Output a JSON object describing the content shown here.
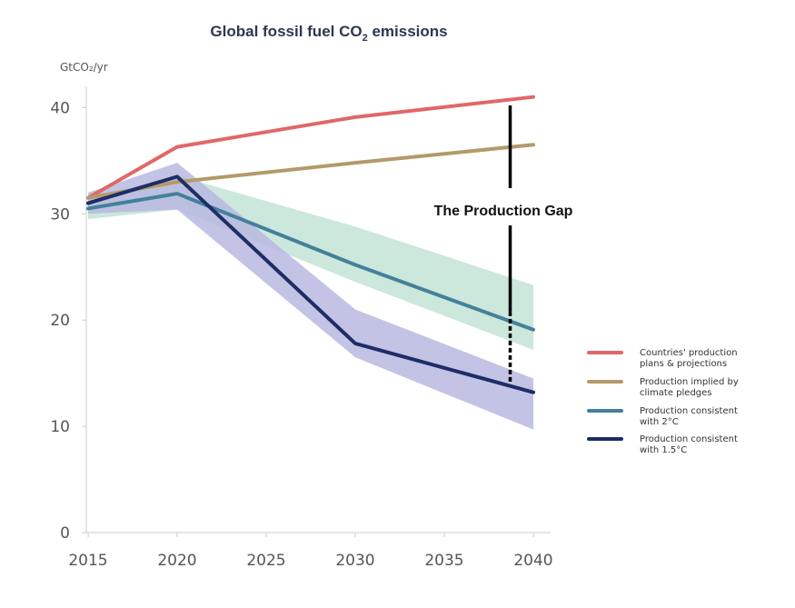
{
  "chart_data": {
    "type": "line",
    "title_main": "Global fossil fuel CO",
    "title_sub": "2",
    "title_end": " emissions",
    "ylabel": "GtCO₂/yr",
    "x": [
      2015,
      2020,
      2030,
      2040
    ],
    "xticks": [
      "2015",
      "2020",
      "2025",
      "2030",
      "2035",
      "2040"
    ],
    "xtick_values": [
      2015,
      2020,
      2025,
      2030,
      2035,
      2040
    ],
    "yticks": [
      "0",
      "10",
      "20",
      "30",
      "40"
    ],
    "ytick_values": [
      0,
      10,
      20,
      30,
      40
    ],
    "xlim": [
      2015,
      2040
    ],
    "ylim": [
      0,
      42
    ],
    "grid": false,
    "legend_position": "right",
    "series": [
      {
        "name": "Countries' production plans & projections",
        "legend_lines": [
          "Countries' production",
          "plans & projections"
        ],
        "color": "#e06868",
        "values": [
          31.5,
          36.3,
          39.1,
          41.0
        ]
      },
      {
        "name": "Production implied by climate pledges",
        "legend_lines": [
          "Production implied by",
          "climate pledges"
        ],
        "color": "#b39a6a",
        "values": [
          31.5,
          33.0,
          34.8,
          36.5
        ]
      },
      {
        "name": "Production consistent with 2°C",
        "legend_lines": [
          "Production consistent",
          "with 2°C"
        ],
        "color": "#44809a",
        "values": [
          30.5,
          31.9,
          25.2,
          19.1
        ]
      },
      {
        "name": "Production consistent with 1.5°C",
        "legend_lines": [
          "Production consistent",
          "with 1.5°C"
        ],
        "color": "#1f2d66",
        "values": [
          31.0,
          33.5,
          17.8,
          13.2
        ]
      }
    ],
    "bands": [
      {
        "for": "Production consistent with 2°C",
        "color": "#c3e3d6",
        "upper": [
          31.5,
          33.6,
          28.8,
          23.3
        ],
        "lower": [
          29.5,
          30.4,
          23.6,
          17.2
        ]
      },
      {
        "for": "Production consistent with 1.5°C",
        "color": "#b7b9e1",
        "upper": [
          32.0,
          34.8,
          21.0,
          14.5
        ],
        "lower": [
          30.0,
          30.4,
          16.5,
          9.7
        ]
      }
    ],
    "annotation": {
      "text": "The Production Gap",
      "x": 2038.7,
      "top": 40.2,
      "bottom": 14.2
    }
  }
}
